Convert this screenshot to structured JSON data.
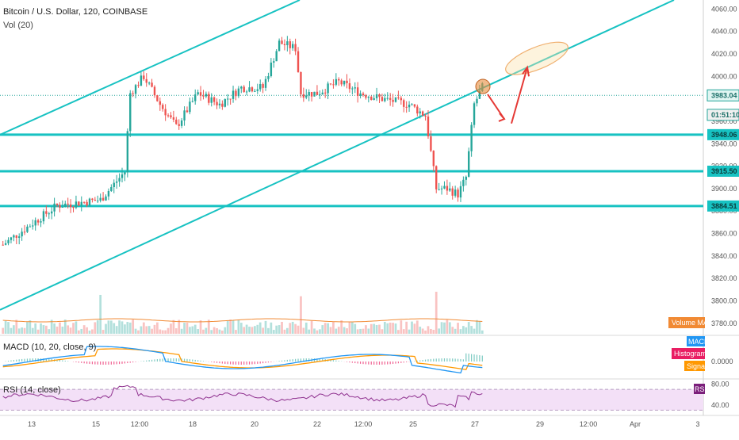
{
  "header": {
    "symbol_line": "Bitcoin / U.S. Dollar, 120, COINBASE",
    "volume_line": "Vol (20)"
  },
  "panes": {
    "macd_label": "MACD (10, 20, close, 9)",
    "rsi_label": "RSI (14, close)"
  },
  "badges": {
    "volume_ma": "Volume MA",
    "macd": "MACD",
    "histogram": "Histogram",
    "signal": "Signal",
    "rsi": "RSI"
  },
  "colors": {
    "up": "#26a69a",
    "down": "#ef5350",
    "trend": "#17c2c2",
    "macd_line": "#2196f3",
    "signal_line": "#ff9800",
    "hist_badge": "#e91e63",
    "rsi_line": "#8e2f8e",
    "rsi_bg": "#f3e0f7",
    "vol_ma_line": "#f18a34"
  },
  "chart_data": [
    {
      "type": "candlestick",
      "title": "Bitcoin / U.S. Dollar, 120, COINBASE",
      "x_ticks": [
        "13",
        "15",
        "12:00",
        "18",
        "20",
        "22",
        "12:00",
        "25",
        "27",
        "29",
        "12:00",
        "Apr",
        "3"
      ],
      "y_ticks": [
        3780,
        3800,
        3820,
        3840,
        3860,
        3880,
        3900,
        3920,
        3940,
        3960,
        3980,
        4000,
        4020,
        4040,
        4060
      ],
      "ylim": [
        3770,
        4068
      ],
      "price_labels": [
        {
          "value": 3983.04,
          "text": "3983.04"
        },
        {
          "value": 3965.7,
          "text": "01:51:10"
        },
        {
          "value": 3948.06,
          "text": "3948.06"
        },
        {
          "value": 3915.5,
          "text": "3915.50"
        },
        {
          "value": 3884.51,
          "text": "3884.51"
        }
      ],
      "horizontal_levels": [
        3948.06,
        3915.5,
        3884.51
      ],
      "last_price": 3983.04,
      "key_points": [
        {
          "bar": 0,
          "price": 3850
        },
        {
          "bar": 20,
          "price": 3885
        },
        {
          "bar": 36,
          "price": 3890
        },
        {
          "bar": 45,
          "price": 3915
        },
        {
          "bar": 47,
          "price": 3985
        },
        {
          "bar": 52,
          "price": 4000
        },
        {
          "bar": 58,
          "price": 3975
        },
        {
          "bar": 64,
          "price": 3955
        },
        {
          "bar": 72,
          "price": 3985
        },
        {
          "bar": 80,
          "price": 3975
        },
        {
          "bar": 88,
          "price": 3990
        },
        {
          "bar": 96,
          "price": 3990
        },
        {
          "bar": 102,
          "price": 4030
        },
        {
          "bar": 108,
          "price": 4025
        },
        {
          "bar": 110,
          "price": 3985
        },
        {
          "bar": 116,
          "price": 3985
        },
        {
          "bar": 124,
          "price": 3995
        },
        {
          "bar": 132,
          "price": 3985
        },
        {
          "bar": 140,
          "price": 3980
        },
        {
          "bar": 150,
          "price": 3975
        },
        {
          "bar": 156,
          "price": 3965
        },
        {
          "bar": 160,
          "price": 3900
        },
        {
          "bar": 164,
          "price": 3900
        },
        {
          "bar": 168,
          "price": 3895
        },
        {
          "bar": 171,
          "price": 3910
        },
        {
          "bar": 174,
          "price": 3975
        },
        {
          "bar": 177,
          "price": 3990
        }
      ],
      "bar_count": 178
    },
    {
      "type": "volume_bar",
      "y_ticks": [],
      "note_series": "Vol (20)"
    },
    {
      "type": "line",
      "series": [
        {
          "name": "MACD"
        },
        {
          "name": "Signal"
        }
      ],
      "y_ticks": [
        "0.0000"
      ]
    },
    {
      "type": "line",
      "series": [
        {
          "name": "RSI"
        }
      ],
      "y_ticks": [
        80.0,
        40.0
      ],
      "ylim": [
        20,
        90
      ]
    }
  ]
}
